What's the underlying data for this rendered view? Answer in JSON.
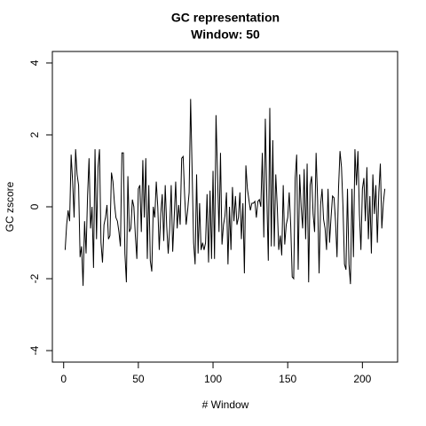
{
  "chart_data": {
    "type": "line",
    "title": [
      "GC representation",
      "Window: 50"
    ],
    "xlabel": "# Window",
    "ylabel": "GC zscore",
    "xlim": [
      -7.56,
      223.56
    ],
    "ylim": [
      -4.32,
      4.32
    ],
    "xticks": [
      0,
      50,
      100,
      150,
      200
    ],
    "yticks": [
      -4,
      -2,
      0,
      2,
      4
    ],
    "grid": false,
    "x": [
      1,
      2,
      3,
      4,
      5,
      6,
      7,
      8,
      9,
      10,
      11,
      12,
      13,
      14,
      15,
      16,
      17,
      18,
      19,
      20,
      21,
      22,
      23,
      24,
      25,
      26,
      27,
      28,
      29,
      30,
      31,
      32,
      33,
      34,
      35,
      36,
      37,
      38,
      39,
      40,
      41,
      42,
      43,
      44,
      45,
      46,
      47,
      48,
      49,
      50,
      51,
      52,
      53,
      54,
      55,
      56,
      57,
      58,
      59,
      60,
      61,
      62,
      63,
      64,
      65,
      66,
      67,
      68,
      69,
      70,
      71,
      72,
      73,
      74,
      75,
      76,
      77,
      78,
      79,
      80,
      81,
      82,
      83,
      84,
      85,
      86,
      87,
      88,
      89,
      90,
      91,
      92,
      93,
      94,
      95,
      96,
      97,
      98,
      99,
      100,
      101,
      102,
      103,
      104,
      105,
      106,
      107,
      108,
      109,
      110,
      111,
      112,
      113,
      114,
      115,
      116,
      117,
      118,
      119,
      120,
      121,
      122,
      123,
      124,
      125,
      126,
      127,
      128,
      129,
      130,
      131,
      132,
      133,
      134,
      135,
      136,
      137,
      138,
      139,
      140,
      141,
      142,
      143,
      144,
      145,
      146,
      147,
      148,
      149,
      150,
      151,
      152,
      153,
      154,
      155,
      156,
      157,
      158,
      159,
      160,
      161,
      162,
      163,
      164,
      165,
      166,
      167,
      168,
      169,
      170,
      171,
      172,
      173,
      174,
      175,
      176,
      177,
      178,
      179,
      180,
      181,
      182,
      183,
      184,
      185,
      186,
      187,
      188,
      189,
      190,
      191,
      192,
      193,
      194,
      195,
      196,
      197,
      198,
      199,
      200,
      201,
      202,
      203,
      204,
      205,
      206,
      207,
      208,
      209,
      210,
      211,
      212,
      213,
      214,
      215
    ],
    "series": [
      {
        "name": "GC zscore",
        "color": "#000000",
        "values": [
          -1.2,
          -0.5,
          -0.1,
          -0.4,
          1.45,
          0.7,
          -0.3,
          1.6,
          0.9,
          0.6,
          -1.4,
          -1.1,
          -2.2,
          -0.4,
          -1.3,
          0.3,
          1.35,
          -0.6,
          0.0,
          -1.7,
          1.6,
          -0.9,
          1.1,
          1.6,
          -1.0,
          -1.55,
          -0.5,
          -0.3,
          0.05,
          -0.9,
          -0.8,
          0.95,
          0.7,
          0.1,
          -0.3,
          -0.4,
          -0.7,
          -1.1,
          1.5,
          1.5,
          -1.3,
          -2.1,
          0.85,
          -0.7,
          -0.6,
          0.2,
          0.0,
          -0.8,
          -1.45,
          0.5,
          0.6,
          -0.7,
          1.3,
          -0.3,
          1.35,
          -1.45,
          0.6,
          -1.5,
          -1.8,
          0.0,
          -0.3,
          0.7,
          0.0,
          -1.2,
          -0.2,
          0.35,
          -0.95,
          0.6,
          -0.55,
          -1.3,
          -0.6,
          0.6,
          -1.25,
          -0.3,
          0.7,
          -0.6,
          0.05,
          -0.5,
          1.35,
          1.4,
          0.3,
          -0.5,
          -0.1,
          0.4,
          3.0,
          1.0,
          -1.0,
          -1.6,
          0.9,
          -1.3,
          0.1,
          -1.2,
          -1.0,
          -1.2,
          -1.0,
          0.35,
          -1.55,
          0.45,
          -1.45,
          1.0,
          -1.45,
          2.55,
          0.9,
          -0.7,
          1.5,
          -1.05,
          -0.5,
          -0.25,
          0.4,
          -1.6,
          0.0,
          -1.2,
          0.55,
          -0.4,
          0.3,
          -0.5,
          -0.3,
          0.4,
          -0.9,
          0.1,
          -1.85,
          1.15,
          0.5,
          0.2,
          -0.1,
          0.1,
          0.1,
          0.15,
          -0.3,
          0.15,
          0.2,
          0.0,
          1.5,
          -0.85,
          2.45,
          0.3,
          -1.5,
          2.75,
          -1.1,
          1.85,
          -1.1,
          0.9,
          0.0,
          -1.2,
          -0.8,
          -1.35,
          0.6,
          -1.05,
          -0.5,
          -0.3,
          0.4,
          -0.5,
          -1.95,
          -2.0,
          0.8,
          1.45,
          -1.75,
          0.9,
          0.0,
          -0.6,
          1.05,
          -0.9,
          1.2,
          -2.1,
          0.6,
          0.85,
          -0.2,
          -0.7,
          1.5,
          0.2,
          -1.85,
          0.05,
          0.5,
          -0.35,
          -0.6,
          -1.2,
          0.5,
          -1.0,
          -0.3,
          0.3,
          0.25,
          -0.4,
          -1.4,
          0.5,
          1.55,
          1.1,
          0.0,
          -1.6,
          -1.75,
          0.5,
          -1.6,
          -2.15,
          0.5,
          -1.4,
          1.6,
          0.6,
          1.55,
          -0.2,
          -1.2,
          0.5,
          0.8,
          -0.4,
          1.1,
          -0.9,
          0.3,
          -1.3,
          0.9,
          -0.2,
          0.6,
          -1.0,
          0.4,
          1.2,
          -0.6,
          0.1,
          0.5
        ]
      }
    ]
  }
}
